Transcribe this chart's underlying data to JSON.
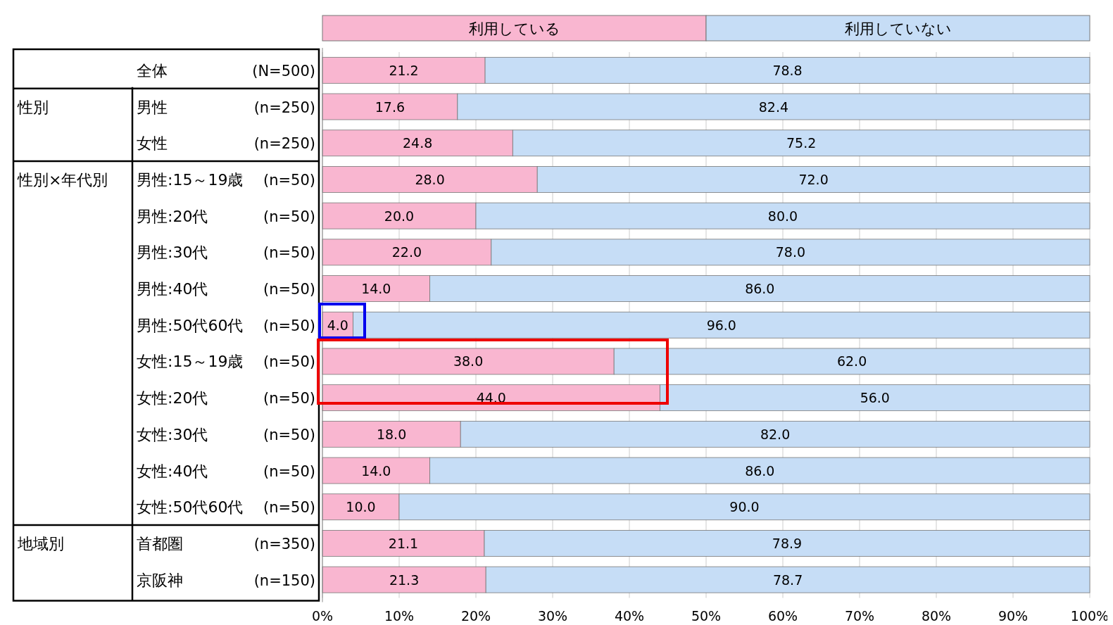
{
  "chart_data": {
    "type": "bar",
    "orientation": "horizontal",
    "stacked": true,
    "legend": "top",
    "grid": "x",
    "categories": [
      "全体 (N=500)",
      "男性 (n=250)",
      "女性 (n=250)",
      "男性:15～19歳 (n=50)",
      "男性:20代 (n=50)",
      "男性:30代 (n=50)",
      "男性:40代 (n=50)",
      "男性:50代60代 (n=50)",
      "女性:15～19歳 (n=50)",
      "女性:20代 (n=50)",
      "女性:30代 (n=50)",
      "女性:40代 (n=50)",
      "女性:50代60代 (n=50)",
      "首都圏 (n=350)",
      "京阪神 (n=150)"
    ],
    "series": [
      {
        "name": "利用している",
        "color": "#f9b6d0",
        "values": [
          21.2,
          17.6,
          24.8,
          28,
          20,
          22,
          14,
          4,
          38,
          44,
          18,
          14,
          10,
          21.1,
          21.3
        ],
        "value_labels": [
          "21.2",
          "17.6",
          "24.8",
          "28.0",
          "20.0",
          "22.0",
          "14.0",
          "4.0",
          "38.0",
          "44.0",
          "18.0",
          "14.0",
          "10.0",
          "21.1",
          "21.3"
        ]
      },
      {
        "name": "利用していない",
        "color": "#c6ddf6",
        "values": [
          78.8,
          82.4,
          75.2,
          72,
          80,
          78,
          86,
          96,
          62,
          56,
          82,
          86,
          90,
          78.9,
          78.7
        ],
        "value_labels": [
          "78.8",
          "82.4",
          "75.2",
          "72.0",
          "80.0",
          "78.0",
          "86.0",
          "96.0",
          "62.0",
          "56.0",
          "82.0",
          "86.0",
          "90.0",
          "78.9",
          "78.7"
        ]
      }
    ],
    "annotations": [
      "性別",
      "性別×年代別",
      "地域別"
    ],
    "xlim": [
      0,
      100
    ],
    "xticks": [
      {
        "value": 0,
        "label": "0%"
      },
      {
        "value": 10,
        "label": "10%"
      },
      {
        "value": 20,
        "label": "20%"
      },
      {
        "value": 30,
        "label": "30%"
      },
      {
        "value": 40,
        "label": "40%"
      },
      {
        "value": 50,
        "label": "50%"
      },
      {
        "value": 60,
        "label": "60%"
      },
      {
        "value": 70,
        "label": "70%"
      },
      {
        "value": 80,
        "label": "80%"
      },
      {
        "value": 90,
        "label": "90%"
      },
      {
        "value": 100,
        "label": "100%"
      }
    ]
  }
}
